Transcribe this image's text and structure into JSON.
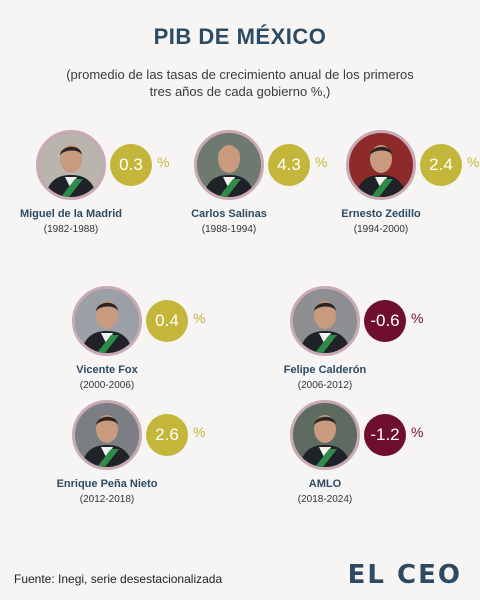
{
  "title": "PIB DE MÉXICO",
  "subtitle": "(promedio de las tasas de crecimiento anual de los primeros tres años de cada gobierno %,)",
  "chart_data": {
    "type": "table",
    "unit": "%",
    "colors": {
      "positive": "#c3b63a",
      "negative": "#6e0f2e",
      "ring": "#c9a9b3",
      "title": "#2c4a63"
    },
    "entries": [
      {
        "name": "Miguel de la Madrid",
        "years": "(1982-1988)",
        "value": 0.3,
        "label": "0.3"
      },
      {
        "name": "Carlos Salinas",
        "years": "(1988-1994)",
        "value": 4.3,
        "label": "4.3"
      },
      {
        "name": "Ernesto Zedillo",
        "years": "(1994-2000)",
        "value": 2.4,
        "label": "2.4"
      },
      {
        "name": "Vicente Fox",
        "years": "(2000-2006)",
        "value": 0.4,
        "label": "0.4"
      },
      {
        "name": "Felipe Calderón",
        "years": "(2006-2012)",
        "value": -0.6,
        "label": "-0.6"
      },
      {
        "name": "Enrique Peña Nieto",
        "years": "(2012-2018)",
        "value": 2.6,
        "label": "2.6"
      },
      {
        "name": "AMLO",
        "years": "(2018-2024)",
        "value": -1.2,
        "label": "-1.2"
      }
    ]
  },
  "source": "Fuente: Inegi, serie desestacionalizada",
  "logo": "EL CEO"
}
